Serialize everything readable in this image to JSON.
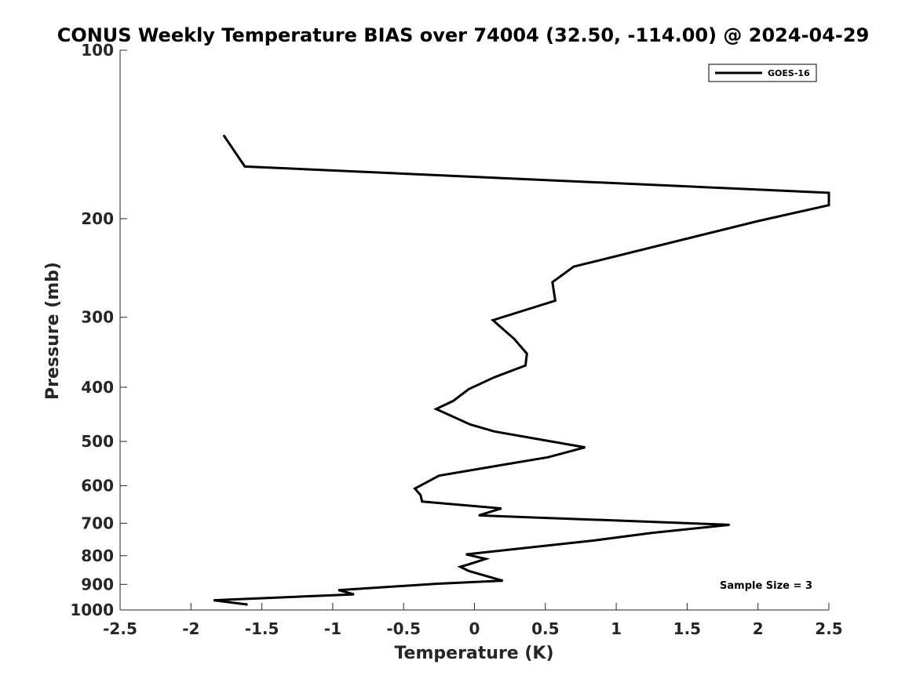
{
  "chart_data": {
    "type": "line",
    "title": "CONUS Weekly Temperature BIAS over 74004 (32.50, -114.00) @ 2024-04-29",
    "xlabel": "Temperature (K)",
    "ylabel": "Pressure (mb)",
    "xlim": [
      -2.5,
      2.5
    ],
    "ylim": [
      100,
      1000
    ],
    "y_scale": "log",
    "y_reversed": true,
    "x_ticks": [
      "-2.5",
      "-2",
      "-1.5",
      "-1",
      "-0.5",
      "0",
      "0.5",
      "1",
      "1.5",
      "2",
      "2.5"
    ],
    "x_tick_values": [
      -2.5,
      -2,
      -1.5,
      -1,
      -0.5,
      0,
      0.5,
      1,
      1.5,
      2,
      2.5
    ],
    "y_ticks": [
      "100",
      "200",
      "300",
      "400",
      "500",
      "600",
      "700",
      "800",
      "900",
      "1000"
    ],
    "y_tick_values": [
      100,
      200,
      300,
      400,
      500,
      600,
      700,
      800,
      900,
      1000
    ],
    "grid": false,
    "legend_position": "top-right",
    "series": [
      {
        "name": "GOES-16",
        "color": "#000000",
        "points": [
          [
            -1.77,
            141.8
          ],
          [
            -1.62,
            161.4
          ],
          [
            2.5,
            179.8
          ],
          [
            2.5,
            189.2
          ],
          [
            2.0,
            202.0
          ],
          [
            0.7,
            243.6
          ],
          [
            0.55,
            259.7
          ],
          [
            0.57,
            280.2
          ],
          [
            0.13,
            303.6
          ],
          [
            0.28,
            328.0
          ],
          [
            0.37,
            348.5
          ],
          [
            0.36,
            365.8
          ],
          [
            0.14,
            384.0
          ],
          [
            -0.04,
            403.2
          ],
          [
            -0.15,
            423.3
          ],
          [
            -0.27,
            437.6
          ],
          [
            -0.03,
            466.4
          ],
          [
            0.14,
            479.8
          ],
          [
            0.78,
            512.3
          ],
          [
            0.52,
            533.5
          ],
          [
            0.2,
            550.5
          ],
          [
            -0.25,
            575.6
          ],
          [
            -0.42,
            607.0
          ],
          [
            -0.38,
            623.7
          ],
          [
            -0.37,
            640.1
          ],
          [
            0.19,
            658.6
          ],
          [
            0.03,
            677.7
          ],
          [
            0.82,
            689.4
          ],
          [
            1.8,
            704.5
          ],
          [
            1.25,
            728.5
          ],
          [
            0.85,
            750.9
          ],
          [
            -0.06,
            795.5
          ],
          [
            0.08,
            810.6
          ],
          [
            -0.04,
            828.9
          ],
          [
            -0.1,
            837.5
          ],
          [
            -0.04,
            851.8
          ],
          [
            0.2,
            886.7
          ],
          [
            -0.27,
            897.8
          ],
          [
            -0.96,
            921.7
          ],
          [
            -0.85,
            937.8
          ],
          [
            -1.84,
            960.7
          ],
          [
            -1.6,
            978.0
          ]
        ]
      }
    ],
    "annotations": [
      {
        "text": "Sample Size = 3",
        "position": "bottom-right"
      }
    ]
  }
}
